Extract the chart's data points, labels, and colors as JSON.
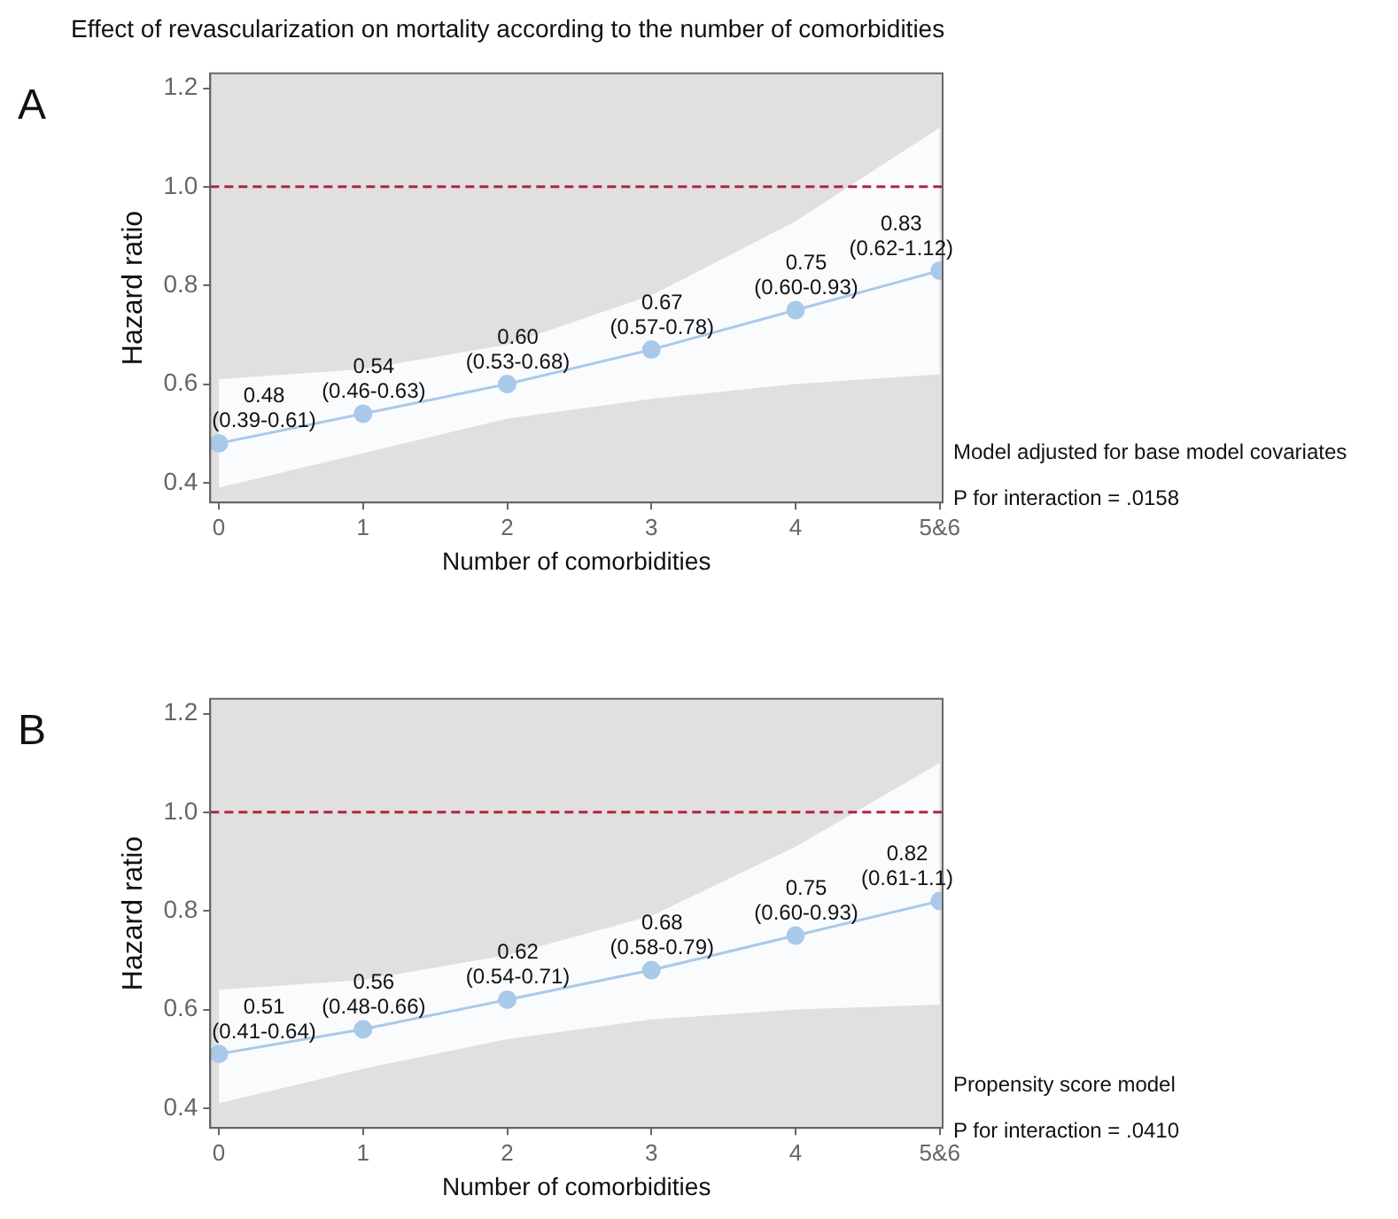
{
  "chart_data": [
    {
      "type": "line",
      "title": "Effect of revascularization on mortality according to the number of comorbidities",
      "xlabel": "Number of comorbidities",
      "ylabel": "Hazard ratio",
      "categories": [
        "0",
        "1",
        "2",
        "3",
        "4",
        "5&6"
      ],
      "series": [
        {
          "color": "#a9c9e9",
          "values": [
            0.48,
            0.54,
            0.6,
            0.67,
            0.75,
            0.83
          ],
          "lower": [
            0.39,
            0.46,
            0.53,
            0.57,
            0.6,
            0.62
          ],
          "upper": [
            0.61,
            0.63,
            0.68,
            0.78,
            0.93,
            1.12
          ],
          "value_labels": [
            "0.48\n(0.39-0.61)",
            "0.54\n(0.46-0.63)",
            "0.60\n(0.53-0.68)",
            "0.67\n(0.57-0.78)",
            "0.75\n(0.60-0.93)",
            "0.83\n(0.62-1.12)"
          ]
        }
      ],
      "ylim": [
        0.36,
        1.23
      ],
      "yticks": [
        {
          "value": 0.4,
          "label": "0.4"
        },
        {
          "value": 0.6,
          "label": "0.6"
        },
        {
          "value": 0.8,
          "label": "0.8"
        },
        {
          "value": 1,
          "label": "1.0"
        },
        {
          "value": 1.2,
          "label": "1.2"
        }
      ],
      "ref_lines": [
        {
          "axis": "y",
          "value": 1,
          "color": "#b2243c",
          "line_style": "dashed"
        }
      ],
      "marker": "circle",
      "line_style": "solid",
      "legend": false,
      "annotations": [
        "A",
        "Model adjusted for base model covariates",
        "P for interaction = .0158"
      ]
    },
    {
      "type": "line",
      "xlabel": "Number of comorbidities",
      "ylabel": "Hazard ratio",
      "categories": [
        "0",
        "1",
        "2",
        "3",
        "4",
        "5&6"
      ],
      "series": [
        {
          "color": "#a9c9e9",
          "values": [
            0.51,
            0.56,
            0.62,
            0.68,
            0.75,
            0.82
          ],
          "lower": [
            0.41,
            0.48,
            0.54,
            0.58,
            0.6,
            0.61
          ],
          "upper": [
            0.64,
            0.66,
            0.71,
            0.79,
            0.93,
            1.1
          ],
          "value_labels": [
            "0.51\n(0.41-0.64)",
            "0.56\n(0.48-0.66)",
            "0.62\n(0.54-0.71)",
            "0.68\n(0.58-0.79)",
            "0.75\n(0.60-0.93)",
            "0.82\n(0.61-1.1)"
          ]
        }
      ],
      "ylim": [
        0.36,
        1.23
      ],
      "yticks": [
        {
          "value": 0.4,
          "label": "0.4"
        },
        {
          "value": 0.6,
          "label": "0.6"
        },
        {
          "value": 0.8,
          "label": "0.8"
        },
        {
          "value": 1,
          "label": "1.0"
        },
        {
          "value": 1.2,
          "label": "1.2"
        }
      ],
      "ref_lines": [
        {
          "axis": "y",
          "value": 1,
          "color": "#b2243c",
          "line_style": "dashed"
        }
      ],
      "marker": "circle",
      "line_style": "solid",
      "legend": false,
      "annotations": [
        "B",
        "Propensity score model",
        "P for interaction = .0410"
      ]
    }
  ]
}
